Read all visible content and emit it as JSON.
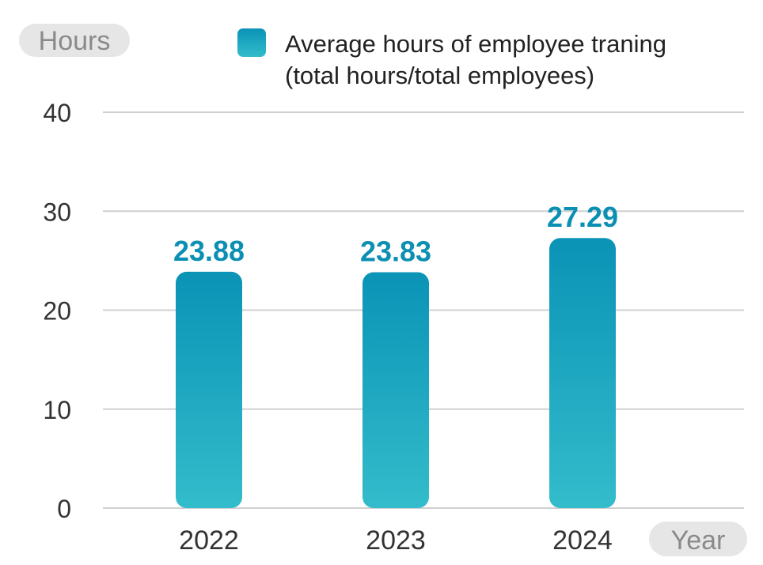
{
  "chart_data": {
    "type": "bar",
    "categories": [
      "2022",
      "2023",
      "2024"
    ],
    "values": [
      23.88,
      23.83,
      27.29
    ],
    "value_labels": [
      "23.88",
      "23.83",
      "27.29"
    ],
    "y_axis_tag": "Hours",
    "x_axis_tag": "Year",
    "ylim": [
      0,
      40
    ],
    "yticks": [
      "0",
      "10",
      "20",
      "30",
      "40"
    ],
    "ytick_values": [
      0,
      10,
      20,
      30,
      40
    ],
    "grid": true,
    "legend": {
      "placement": "top-right",
      "line1": "Average hours of employee traning",
      "line2": "(total hours/total employees)"
    },
    "colors": {
      "bar_top": "#0a93b6",
      "bar_bottom": "#33bccb",
      "value_label": "#0b8fb3",
      "grid": "#d0d0d0"
    }
  }
}
